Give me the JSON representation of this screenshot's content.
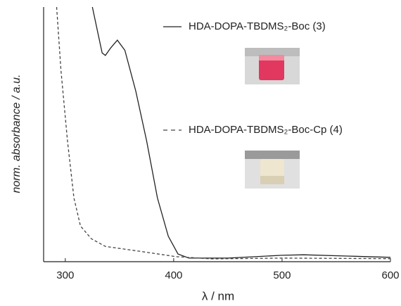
{
  "chart_data": {
    "type": "line",
    "x_label": "λ / nm",
    "y_label": "norm. absorbance / a.u.",
    "xlim": [
      280,
      600
    ],
    "xticks": [
      300,
      400,
      500,
      600
    ],
    "ylim": [
      0,
      1
    ],
    "series": [
      {
        "name": "HDA-DOPA-TBDMS₂-Boc (3)",
        "color": "#222222",
        "linestyle": "solid",
        "x": [
          325,
          330,
          334,
          337,
          342,
          348,
          355,
          365,
          375,
          385,
          395,
          404,
          414,
          450,
          500,
          520,
          560,
          600
        ],
        "values": [
          1,
          0.9,
          0.82,
          0.81,
          0.84,
          0.87,
          0.83,
          0.67,
          0.475,
          0.25,
          0.1,
          0.03,
          0.014,
          0.014,
          0.025,
          0.027,
          0.022,
          0.017
        ]
      },
      {
        "name": "HDA-DOPA-TBDMS₂-Boc-Cp (4)",
        "color": "#444444",
        "linestyle": "dashed",
        "x": [
          292,
          296,
          302,
          308,
          314,
          324,
          337,
          370,
          402,
          435,
          500,
          600
        ],
        "values": [
          1,
          0.75,
          0.475,
          0.25,
          0.14,
          0.09,
          0.06,
          0.04,
          0.02,
          0.011,
          0.014,
          0.012
        ]
      }
    ]
  }
}
